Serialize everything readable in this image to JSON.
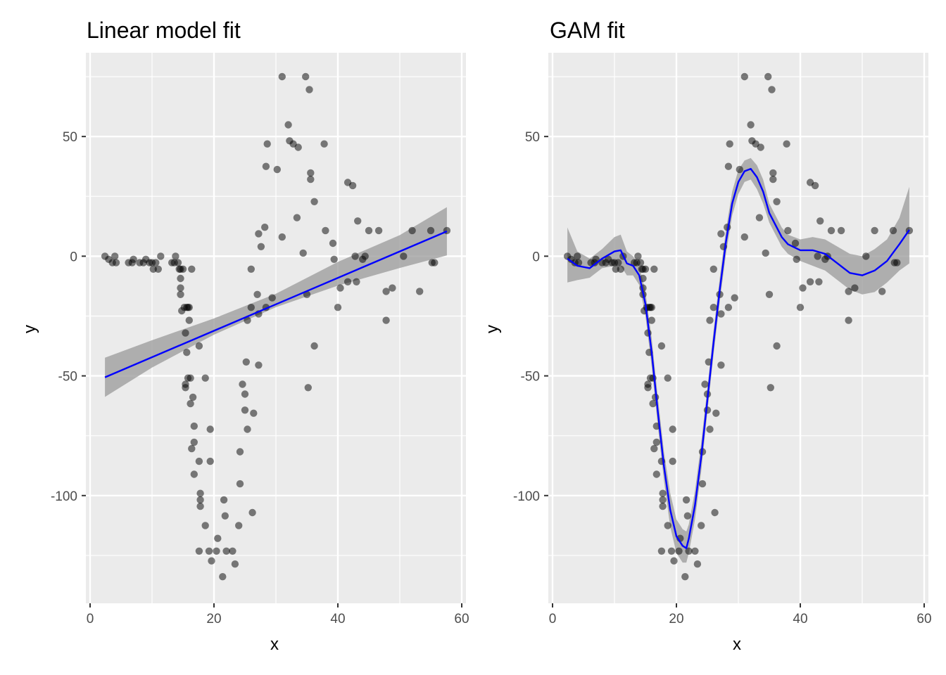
{
  "chart_data": [
    {
      "type": "scatter",
      "title": "Linear model fit",
      "xlabel": "x",
      "ylabel": "y",
      "xlim": [
        0,
        60
      ],
      "ylim": [
        -145,
        85
      ],
      "x_ticks": [
        0,
        20,
        40,
        60
      ],
      "y_ticks": [
        -100,
        -50,
        0,
        50
      ],
      "grid": true,
      "point_color": "#000000",
      "point_opacity": 0.5,
      "series": [
        {
          "name": "",
          "kind": "points",
          "points": [
            [
              2.4,
              0
            ],
            [
              3.0,
              -1.3
            ],
            [
              3.6,
              -2.7
            ],
            [
              4.0,
              0
            ],
            [
              4.2,
              -2.7
            ],
            [
              6.2,
              -2.7
            ],
            [
              6.8,
              -2.7
            ],
            [
              7.0,
              -1.3
            ],
            [
              8.0,
              -2.7
            ],
            [
              8.6,
              -2.7
            ],
            [
              9.0,
              -1.3
            ],
            [
              9.6,
              -2.7
            ],
            [
              10.0,
              -2.7
            ],
            [
              10.2,
              -5.4
            ],
            [
              10.6,
              -2.7
            ],
            [
              11.0,
              -5.4
            ],
            [
              11.4,
              0
            ],
            [
              13.2,
              -2.7
            ],
            [
              13.6,
              -2.7
            ],
            [
              13.8,
              0
            ],
            [
              14.2,
              -2.7
            ],
            [
              14.4,
              -5.4
            ],
            [
              14.6,
              -5.4
            ],
            [
              14.6,
              -9.3
            ],
            [
              14.6,
              -13.3
            ],
            [
              14.6,
              -16.0
            ],
            [
              14.8,
              -22.8
            ],
            [
              15.0,
              -5.4
            ],
            [
              15.2,
              -21.4
            ],
            [
              15.4,
              -32.1
            ],
            [
              15.4,
              -53.5
            ],
            [
              15.4,
              -54.9
            ],
            [
              15.6,
              -21.4
            ],
            [
              15.6,
              -40.2
            ],
            [
              15.8,
              -21.4
            ],
            [
              15.8,
              -50.9
            ],
            [
              16.0,
              -26.8
            ],
            [
              16.0,
              -21.4
            ],
            [
              16.2,
              -50.9
            ],
            [
              16.2,
              -61.6
            ],
            [
              16.4,
              -5.4
            ],
            [
              16.4,
              -80.4
            ],
            [
              16.6,
              -58.9
            ],
            [
              16.8,
              -77.7
            ],
            [
              16.8,
              -71.0
            ],
            [
              16.8,
              -91.1
            ],
            [
              17.6,
              -37.5
            ],
            [
              17.6,
              -85.7
            ],
            [
              17.6,
              -123.2
            ],
            [
              17.8,
              -99.1
            ],
            [
              17.8,
              -101.8
            ],
            [
              17.8,
              -104.5
            ],
            [
              18.6,
              -50.9
            ],
            [
              18.6,
              -112.5
            ],
            [
              19.2,
              -123.2
            ],
            [
              19.4,
              -72.3
            ],
            [
              19.4,
              -85.7
            ],
            [
              19.6,
              -127.3
            ],
            [
              20.4,
              -123.2
            ],
            [
              20.6,
              -117.9
            ],
            [
              21.4,
              -133.9
            ],
            [
              21.6,
              -101.8
            ],
            [
              21.8,
              -108.5
            ],
            [
              22.0,
              -123.2
            ],
            [
              23.0,
              -123.2
            ],
            [
              23.4,
              -128.6
            ],
            [
              24.0,
              -112.5
            ],
            [
              24.2,
              -81.7
            ],
            [
              24.2,
              -95.1
            ],
            [
              24.6,
              -53.5
            ],
            [
              25.0,
              -57.6
            ],
            [
              25.0,
              -64.3
            ],
            [
              25.2,
              -44.2
            ],
            [
              25.4,
              -72.3
            ],
            [
              25.4,
              -26.8
            ],
            [
              26.0,
              -5.4
            ],
            [
              26.0,
              -21.4
            ],
            [
              26.2,
              -107.1
            ],
            [
              26.4,
              -65.6
            ],
            [
              27.0,
              -16.0
            ],
            [
              27.2,
              -45.5
            ],
            [
              27.2,
              9.4
            ],
            [
              27.2,
              -24.1
            ],
            [
              27.6,
              4.0
            ],
            [
              28.2,
              12.1
            ],
            [
              28.4,
              37.5
            ],
            [
              28.4,
              -21.4
            ],
            [
              28.6,
              46.9
            ],
            [
              29.4,
              -17.4
            ],
            [
              30.2,
              36.2
            ],
            [
              31.0,
              8.0
            ],
            [
              31.0,
              75.0
            ],
            [
              32.0,
              54.9
            ],
            [
              32.2,
              48.2
            ],
            [
              32.8,
              46.9
            ],
            [
              33.4,
              16.1
            ],
            [
              33.6,
              45.5
            ],
            [
              34.4,
              1.3
            ],
            [
              34.8,
              75.0
            ],
            [
              35.0,
              -16.0
            ],
            [
              35.2,
              -54.9
            ],
            [
              35.4,
              69.6
            ],
            [
              35.6,
              34.8
            ],
            [
              35.6,
              32.1
            ],
            [
              36.2,
              -37.5
            ],
            [
              36.2,
              22.8
            ],
            [
              37.8,
              46.9
            ],
            [
              38.0,
              10.7
            ],
            [
              39.2,
              5.4
            ],
            [
              39.4,
              -1.3
            ],
            [
              40.0,
              -21.4
            ],
            [
              40.4,
              -13.3
            ],
            [
              41.6,
              30.8
            ],
            [
              41.6,
              -10.7
            ],
            [
              42.4,
              29.5
            ],
            [
              42.8,
              0
            ],
            [
              43.0,
              -10.7
            ],
            [
              43.2,
              14.7
            ],
            [
              44.0,
              -1.3
            ],
            [
              44.4,
              0
            ],
            [
              45.0,
              10.7
            ],
            [
              46.6,
              10.7
            ],
            [
              47.8,
              -26.8
            ],
            [
              47.8,
              -14.7
            ],
            [
              48.8,
              -13.3
            ],
            [
              50.6,
              0
            ],
            [
              52.0,
              10.7
            ],
            [
              53.2,
              -14.7
            ],
            [
              55.0,
              10.7
            ],
            [
              55.2,
              -2.7
            ],
            [
              55.6,
              -2.7
            ],
            [
              57.6,
              10.7
            ]
          ]
        },
        {
          "name": "",
          "kind": "fit-line",
          "color": "#0000ff",
          "x": [
            2.4,
            57.6
          ],
          "y": [
            -50.6,
            10.4
          ]
        },
        {
          "name": "",
          "kind": "confidence-band",
          "color": "#999999",
          "x": [
            2.4,
            10,
            20,
            30,
            40,
            50,
            57.6
          ],
          "lower": [
            -58.8,
            -46.5,
            -32.8,
            -21.3,
            -12.3,
            -4.9,
            0.3
          ],
          "upper": [
            -42.4,
            -35.1,
            -26.0,
            -15.7,
            -2.4,
            8.8,
            20.5
          ]
        }
      ]
    },
    {
      "type": "scatter",
      "title": "GAM fit",
      "xlabel": "x",
      "ylabel": "y",
      "xlim": [
        0,
        60
      ],
      "ylim": [
        -145,
        85
      ],
      "x_ticks": [
        0,
        20,
        40,
        60
      ],
      "y_ticks": [
        -100,
        -50,
        0,
        50
      ],
      "grid": true,
      "point_color": "#000000",
      "point_opacity": 0.5,
      "series": [
        {
          "name": "",
          "kind": "points",
          "points": "same-as-panel-1"
        },
        {
          "name": "",
          "kind": "fit-line",
          "color": "#0000ff",
          "x": [
            2.4,
            4,
            6,
            8,
            10,
            11,
            12,
            13,
            14,
            15,
            16,
            17,
            18,
            19,
            20,
            21,
            21.6,
            22,
            23,
            24,
            25,
            26,
            27,
            28,
            29,
            30,
            31,
            32,
            33,
            34,
            35,
            36,
            37,
            38,
            40,
            42,
            44,
            46,
            48,
            50,
            52,
            54,
            56,
            57.6
          ],
          "y": [
            -1,
            -4,
            -5,
            -1,
            2,
            2.5,
            -3,
            -4,
            -8,
            -20,
            -40,
            -65,
            -88,
            -106,
            -117,
            -121,
            -122,
            -118,
            -104,
            -84,
            -60,
            -36,
            -14,
            6,
            22,
            31,
            35.5,
            36.5,
            33,
            27,
            18,
            13,
            8,
            5,
            2.5,
            2.5,
            1,
            -3,
            -7,
            -8,
            -6,
            -2,
            5,
            11
          ]
        },
        {
          "name": "",
          "kind": "confidence-band",
          "color": "#999999",
          "x": [
            2.4,
            4,
            6,
            8,
            10,
            11,
            12,
            13,
            14,
            15,
            16,
            17,
            18,
            19,
            20,
            21,
            21.6,
            22,
            23,
            24,
            25,
            26,
            27,
            28,
            29,
            30,
            31,
            32,
            33,
            34,
            35,
            36,
            37,
            38,
            40,
            42,
            44,
            46,
            48,
            50,
            52,
            54,
            56,
            57.6
          ],
          "lower": [
            -11,
            -10,
            -9,
            -5,
            -4,
            -4,
            -8,
            -8,
            -12,
            -25,
            -46,
            -71,
            -94,
            -113,
            -124,
            -128,
            -128,
            -124,
            -110,
            -90,
            -65,
            -41,
            -19,
            1,
            17,
            26,
            31,
            32,
            28,
            22,
            14,
            9,
            4,
            1,
            -2,
            -4,
            -6,
            -10,
            -14,
            -16,
            -15,
            -11,
            -6,
            -3
          ],
          "upper": [
            12,
            2,
            -1,
            3,
            8,
            9,
            2,
            0,
            -4,
            -15,
            -34,
            -59,
            -82,
            -99,
            -110,
            -114,
            -115,
            -112,
            -98,
            -78,
            -55,
            -31,
            -9,
            11,
            27,
            36,
            40,
            41,
            38,
            32,
            22,
            17,
            12,
            9,
            7,
            8,
            7,
            4,
            1,
            0,
            3,
            7,
            16,
            29
          ]
        }
      ]
    }
  ]
}
